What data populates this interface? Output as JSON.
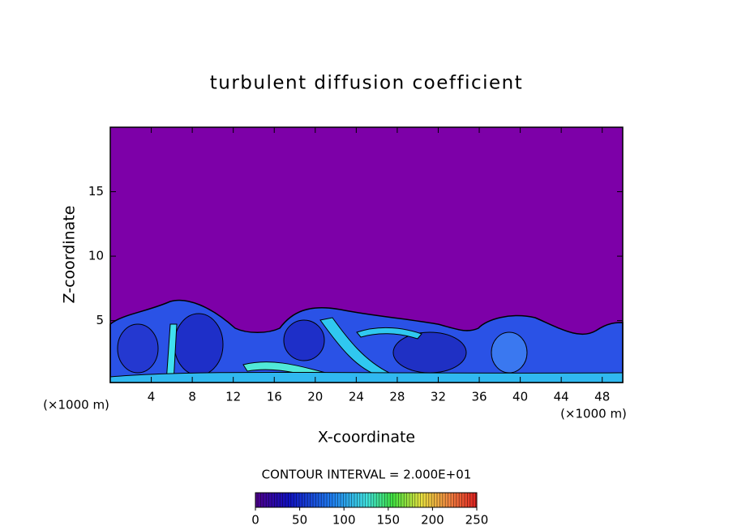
{
  "chart_data": {
    "type": "contour",
    "title": "turbulent diffusion coefficient",
    "x_label": "X-coordinate",
    "y_label": "Z-coordinate",
    "x_unit_labels": [
      "(×1000 m)",
      "(×1000 m)"
    ],
    "contour_interval_label": "CONTOUR INTERVAL = 2.000E+01",
    "xlim": [
      0,
      50
    ],
    "xticks": [
      4,
      8,
      12,
      16,
      20,
      24,
      28,
      32,
      36,
      40,
      44,
      48
    ],
    "ylim": [
      0.2,
      20
    ],
    "yticks": [
      5,
      10,
      15
    ],
    "background_color": "#7d00a8",
    "colorbar": {
      "lim": [
        0,
        250
      ],
      "ticks": [
        0,
        50,
        100,
        150,
        200,
        250
      ]
    }
  }
}
